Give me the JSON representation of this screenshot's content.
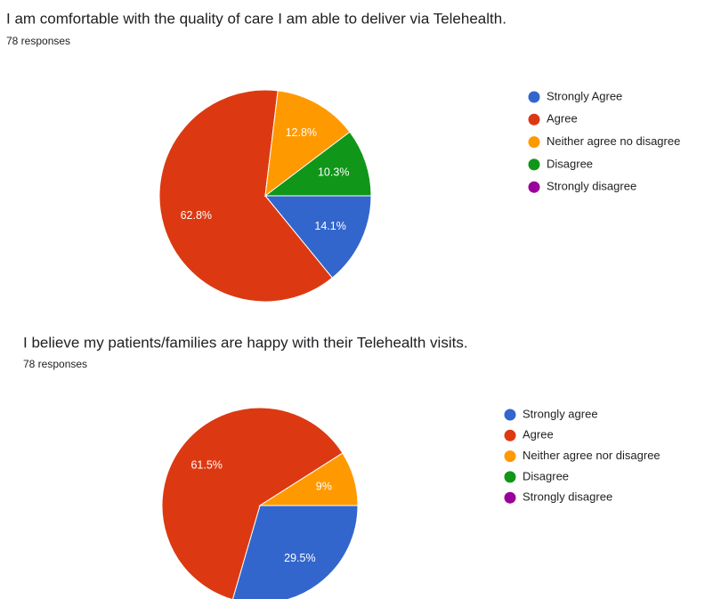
{
  "chart_data": [
    {
      "type": "pie",
      "title": "I am comfortable with the quality of care I am able to deliver via Telehealth.",
      "subtitle": "78 responses",
      "categories": [
        "Strongly Agree",
        "Agree",
        "Neither agree no disagree",
        "Disagree",
        "Strongly disagree"
      ],
      "values": [
        14.1,
        62.8,
        12.8,
        10.3,
        0
      ],
      "value_labels": [
        "14.1%",
        "62.8%",
        "12.8%",
        "10.3%",
        null
      ],
      "colors": [
        "#3366cc",
        "#dc3912",
        "#ff9900",
        "#109618",
        "#990099"
      ],
      "legend": "right"
    },
    {
      "type": "pie",
      "title": "I believe my patients/families are happy with their Telehealth visits.",
      "subtitle": "78 responses",
      "categories": [
        "Strongly agree",
        "Agree",
        "Neither agree nor disagree",
        "Disagree",
        "Strongly disagree"
      ],
      "values": [
        29.5,
        61.5,
        9,
        0,
        0
      ],
      "value_labels": [
        "29.5%",
        "61.5%",
        "9%",
        null,
        null
      ],
      "colors": [
        "#3366cc",
        "#dc3912",
        "#ff9900",
        "#109618",
        "#990099"
      ],
      "legend": "right"
    }
  ]
}
